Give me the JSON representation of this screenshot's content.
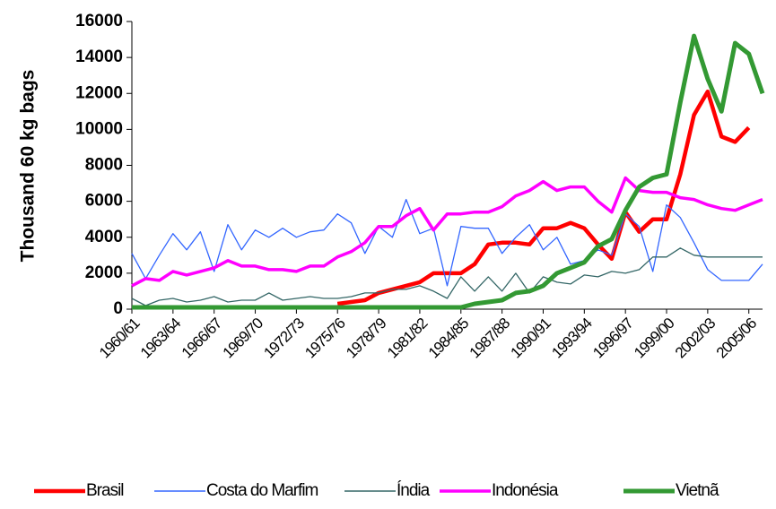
{
  "chart_data": {
    "type": "line",
    "y_label": "Thousand 60 kg bags",
    "categories": [
      "1960/61",
      null,
      null,
      "1963/64",
      null,
      null,
      "1966/67",
      null,
      null,
      "1969/70",
      null,
      null,
      "1972/73",
      null,
      null,
      "1975/76",
      null,
      null,
      "1978/79",
      null,
      null,
      "1981/82",
      null,
      null,
      "1984/85",
      null,
      null,
      "1987/88",
      null,
      null,
      "1990/91",
      null,
      null,
      "1993/94",
      null,
      null,
      "1996/97",
      null,
      null,
      "1999/00",
      null,
      null,
      "2002/03",
      null,
      null,
      "2005/06",
      null
    ],
    "series": [
      {
        "name": "Brasil",
        "color": "#ff0000",
        "values": [
          null,
          null,
          null,
          null,
          null,
          null,
          null,
          null,
          null,
          null,
          null,
          null,
          null,
          null,
          null,
          300,
          400,
          500,
          900,
          1100,
          1300,
          1500,
          2000,
          2000,
          2000,
          2500,
          3600,
          3700,
          3700,
          3600,
          4500,
          4500,
          4800,
          4500,
          3600,
          2800,
          5400,
          4300,
          5000,
          5000,
          7500,
          10800,
          12100,
          9600,
          9300,
          10100,
          null
        ]
      },
      {
        "name": "Costa do Marfim",
        "color": "#3366ff",
        "values": [
          3100,
          1700,
          3000,
          4200,
          3300,
          4300,
          2100,
          4700,
          3300,
          4400,
          4000,
          4500,
          4000,
          4300,
          4400,
          5300,
          4800,
          3100,
          4600,
          4000,
          6100,
          4200,
          4500,
          1300,
          4600,
          4500,
          4500,
          3100,
          4000,
          4700,
          3300,
          4000,
          2500,
          2700,
          3300,
          3000,
          5300,
          4600,
          2100,
          5800,
          5100,
          3700,
          2200,
          1600,
          1600,
          1600,
          2500
        ]
      },
      {
        "name": "Índia",
        "color": "#336666",
        "values": [
          600,
          200,
          500,
          600,
          400,
          500,
          700,
          400,
          500,
          500,
          900,
          500,
          600,
          700,
          600,
          600,
          700,
          900,
          900,
          1100,
          1100,
          1300,
          1000,
          600,
          1800,
          1000,
          1800,
          1000,
          2000,
          900,
          1800,
          1500,
          1400,
          1900,
          1800,
          2100,
          2000,
          2200,
          2900,
          2900,
          3400,
          3000,
          2900,
          2900,
          2900,
          2900,
          2900
        ]
      },
      {
        "name": "Indonésia",
        "color": "#ff00ff",
        "values": [
          1300,
          1700,
          1600,
          2100,
          1900,
          2100,
          2300,
          2700,
          2400,
          2400,
          2200,
          2200,
          2100,
          2400,
          2400,
          2900,
          3200,
          3700,
          4600,
          4600,
          5200,
          5600,
          4400,
          5300,
          5300,
          5400,
          5400,
          5700,
          6300,
          6600,
          7100,
          6600,
          6800,
          6800,
          6000,
          5400,
          7300,
          6600,
          6500,
          6500,
          6200,
          6100,
          5800,
          5600,
          5500,
          5800,
          6100
        ]
      },
      {
        "name": "Vietnã",
        "color": "#339933",
        "values": [
          100,
          100,
          100,
          100,
          100,
          100,
          100,
          100,
          100,
          100,
          100,
          100,
          100,
          100,
          100,
          100,
          100,
          100,
          100,
          100,
          100,
          100,
          100,
          100,
          100,
          300,
          400,
          500,
          900,
          1000,
          1300,
          2000,
          2300,
          2600,
          3500,
          3900,
          5500,
          6800,
          7300,
          7500,
          11500,
          15200,
          12800,
          11000,
          14800,
          14200,
          12000
        ]
      }
    ],
    "ylim": [
      0,
      16000
    ],
    "yticks": [
      0,
      2000,
      4000,
      6000,
      8000,
      10000,
      12000,
      14000,
      16000
    ],
    "grid": false,
    "legend": "bottom"
  }
}
